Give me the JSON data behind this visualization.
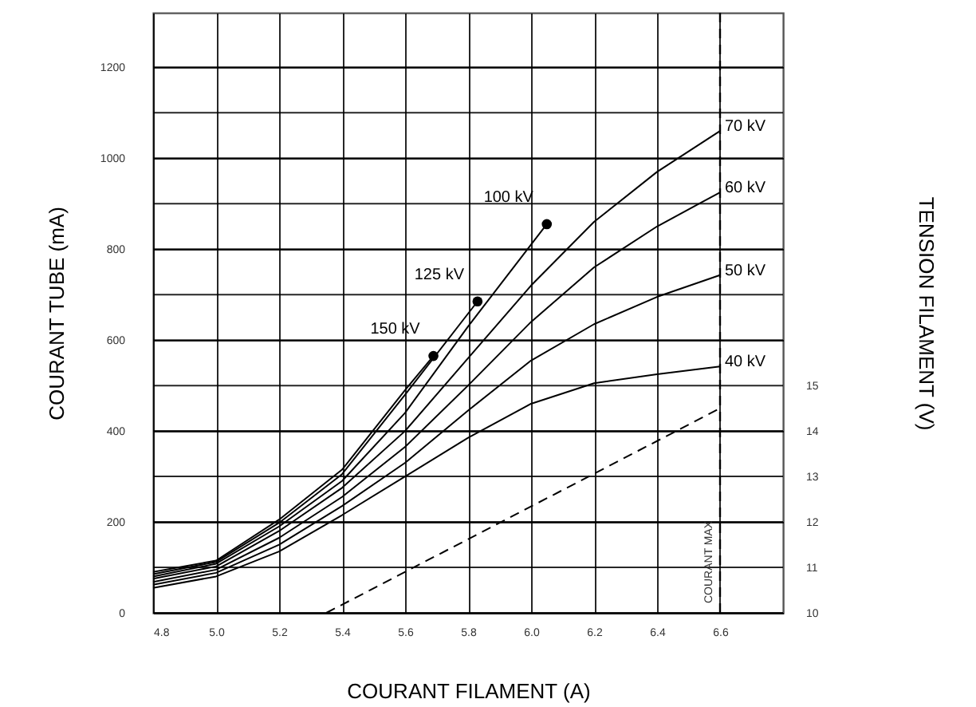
{
  "chart_data": {
    "type": "line",
    "xlabel": "COURANT FILAMENT (A)",
    "ylabel": "COURANT TUBE (mA)",
    "y2label": "TENSION FILAMENT (V)",
    "xlim": [
      4.8,
      6.8
    ],
    "ylim": [
      0,
      1320
    ],
    "y2lim": [
      10,
      23.2
    ],
    "xticks": [
      4.8,
      {
        "value": 5.0,
        "label": "5.0"
      },
      5.2,
      5.4,
      5.6,
      5.8,
      {
        "value": 6.0,
        "label": "6.0"
      },
      6.2,
      6.4,
      6.6
    ],
    "yticks": [
      0,
      {
        "value": 100,
        "label": null
      },
      200,
      {
        "value": 300,
        "label": null
      },
      400,
      {
        "value": 500,
        "label": null
      },
      600,
      {
        "value": 700,
        "label": null
      },
      800,
      {
        "value": 900,
        "label": null
      },
      1000,
      {
        "value": 1100,
        "label": null
      },
      1200
    ],
    "y2ticks": [
      10,
      11,
      12,
      13,
      14,
      15
    ],
    "grid": true,
    "series": [
      {
        "name": "70 kV",
        "color": "#000000",
        "x": [
          4.8,
          5.0,
          5.2,
          5.4,
          5.6,
          5.8,
          6.0,
          6.2,
          6.4,
          6.6
        ],
        "values": [
          75,
          102,
          180,
          275,
          400,
          560,
          720,
          860,
          970,
          1060
        ]
      },
      {
        "name": "60 kV",
        "color": "#000000",
        "x": [
          4.8,
          5.0,
          5.2,
          5.4,
          5.6,
          5.8,
          6.0,
          6.2,
          6.4,
          6.6
        ],
        "values": [
          68,
          95,
          165,
          255,
          365,
          500,
          640,
          760,
          850,
          925
        ]
      },
      {
        "name": "50 kV",
        "color": "#000000",
        "x": [
          4.8,
          5.0,
          5.2,
          5.4,
          5.6,
          5.8,
          6.0,
          6.2,
          6.4,
          6.6
        ],
        "values": [
          62,
          88,
          150,
          235,
          330,
          445,
          555,
          635,
          695,
          743
        ]
      },
      {
        "name": "40 kV",
        "color": "#000000",
        "x": [
          4.8,
          5.0,
          5.2,
          5.4,
          5.6,
          5.8,
          6.0,
          6.2,
          6.4,
          6.6
        ],
        "values": [
          55,
          80,
          135,
          215,
          300,
          385,
          460,
          505,
          525,
          542
        ]
      },
      {
        "name": "100 kV",
        "color": "#000000",
        "x": [
          4.8,
          5.0,
          5.2,
          5.4,
          5.6,
          5.8,
          6.05
        ],
        "values": [
          80,
          108,
          190,
          290,
          440,
          630,
          855
        ]
      },
      {
        "name": "125 kV",
        "color": "#000000",
        "x": [
          4.8,
          5.0,
          5.2,
          5.4,
          5.6,
          5.83
        ],
        "values": [
          85,
          112,
          198,
          305,
          480,
          685
        ]
      },
      {
        "name": "150 kV",
        "color": "#000000",
        "x": [
          4.8,
          5.0,
          5.2,
          5.4,
          5.6,
          5.69
        ],
        "values": [
          90,
          115,
          205,
          315,
          490,
          565
        ]
      },
      {
        "type": "scatter",
        "marker": "circle",
        "color": "#000000",
        "x": [
          6.05,
          5.83,
          5.69
        ],
        "values": [
          855,
          685,
          565
        ]
      },
      {
        "axis": "y2",
        "line_style": "dashed",
        "color": "#000000",
        "x": [
          5.35,
          6.6
        ],
        "values": [
          10,
          14.5
        ]
      }
    ],
    "ref_lines": [
      {
        "axis": "x",
        "value": 6.6,
        "label": "COURANT MAX",
        "line_style": "dashed"
      }
    ]
  }
}
